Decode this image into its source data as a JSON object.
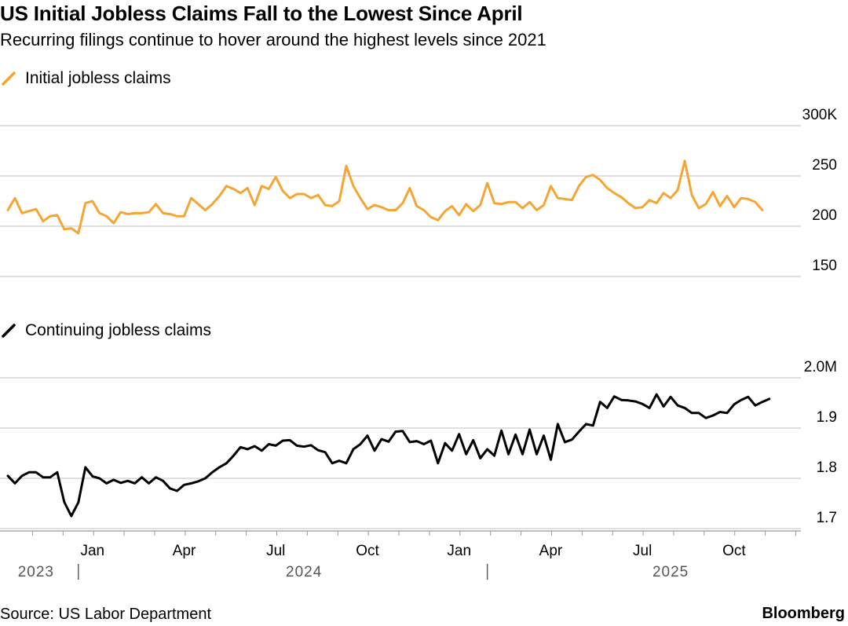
{
  "title": "US Initial Jobless Claims Fall to the Lowest Since April",
  "subtitle": "Recurring filings continue to hover around the highest levels since 2021",
  "source": "Source: US Labor Department",
  "brand": "Bloomberg",
  "colors": {
    "initial": "#f4a533",
    "continuing": "#000000",
    "grid": "#cccccc",
    "axis": "#999999"
  },
  "chart_data": [
    {
      "type": "line",
      "legend": "Initial jobless claims",
      "units": "thousands",
      "yticks": [
        {
          "value": 300,
          "label": "300K"
        },
        {
          "value": 250,
          "label": "250"
        },
        {
          "value": 200,
          "label": "200"
        },
        {
          "value": 150,
          "label": "150"
        }
      ],
      "ylim": [
        150,
        300
      ],
      "series": [
        {
          "name": "Initial jobless claims",
          "start_week": 0,
          "values": [
            216,
            228,
            213,
            215,
            217,
            205,
            210,
            211,
            197,
            198,
            193,
            223,
            225,
            213,
            210,
            203,
            214,
            212,
            213,
            213,
            214,
            222,
            213,
            212,
            210,
            210,
            228,
            222,
            216,
            222,
            230,
            240,
            237,
            233,
            238,
            221,
            240,
            237,
            249,
            235,
            228,
            232,
            232,
            228,
            231,
            221,
            220,
            225,
            260,
            240,
            228,
            217,
            221,
            219,
            216,
            216,
            223,
            238,
            220,
            216,
            209,
            206,
            215,
            220,
            211,
            222,
            215,
            221,
            243,
            223,
            222,
            224,
            224,
            218,
            224,
            216,
            221,
            240,
            228,
            227,
            226,
            240,
            249,
            251,
            246,
            238,
            233,
            229,
            223,
            218,
            219,
            226,
            223,
            233,
            228,
            236,
            265,
            231,
            218,
            222,
            234,
            220,
            230,
            219,
            228,
            227,
            224,
            216
          ]
        }
      ]
    },
    {
      "type": "line",
      "legend": "Continuing jobless claims",
      "units": "millions",
      "yticks": [
        {
          "value": 2.0,
          "label": "2.0M"
        },
        {
          "value": 1.9,
          "label": "1.9"
        },
        {
          "value": 1.8,
          "label": "1.8"
        },
        {
          "value": 1.7,
          "label": "1.7"
        }
      ],
      "ylim": [
        1.7,
        2.0
      ],
      "series": [
        {
          "name": "Continuing jobless claims",
          "start_week": 0,
          "values": [
            1.805,
            1.79,
            1.805,
            1.812,
            1.812,
            1.802,
            1.802,
            1.812,
            1.753,
            1.725,
            1.752,
            1.822,
            1.804,
            1.8,
            1.79,
            1.797,
            1.791,
            1.795,
            1.79,
            1.802,
            1.79,
            1.802,
            1.795,
            1.78,
            1.775,
            1.787,
            1.79,
            1.794,
            1.8,
            1.812,
            1.822,
            1.83,
            1.845,
            1.862,
            1.858,
            1.864,
            1.855,
            1.868,
            1.865,
            1.875,
            1.876,
            1.865,
            1.863,
            1.866,
            1.856,
            1.852,
            1.83,
            1.835,
            1.83,
            1.858,
            1.868,
            1.885,
            1.855,
            1.878,
            1.873,
            1.893,
            1.894,
            1.872,
            1.874,
            1.868,
            1.875,
            1.83,
            1.87,
            1.855,
            1.888,
            1.848,
            1.876,
            1.84,
            1.858,
            1.845,
            1.895,
            1.848,
            1.887,
            1.848,
            1.897,
            1.848,
            1.885,
            1.837,
            1.908,
            1.872,
            1.877,
            1.893,
            1.908,
            1.905,
            1.952,
            1.94,
            1.963,
            1.956,
            1.955,
            1.953,
            1.948,
            1.94,
            1.967,
            1.943,
            1.962,
            1.945,
            1.94,
            1.93,
            1.93,
            1.92,
            1.925,
            1.932,
            1.93,
            1.947,
            1.956,
            1.962,
            1.945,
            1.952,
            1.958
          ]
        }
      ],
      "x_axis": {
        "month_labels": [
          {
            "label": "Jan",
            "week": 12
          },
          {
            "label": "Apr",
            "week": 25
          },
          {
            "label": "Jul",
            "week": 38
          },
          {
            "label": "Oct",
            "week": 51
          },
          {
            "label": "Jan",
            "week": 64
          },
          {
            "label": "Apr",
            "week": 77
          },
          {
            "label": "Jul",
            "week": 90
          },
          {
            "label": "Oct",
            "week": 103
          }
        ],
        "year_labels": [
          {
            "label": "2023",
            "week": 6
          },
          {
            "label": "2024",
            "week": 42
          },
          {
            "label": "2025",
            "week": 94
          }
        ],
        "year_dividers": [
          10,
          68
        ]
      }
    }
  ]
}
